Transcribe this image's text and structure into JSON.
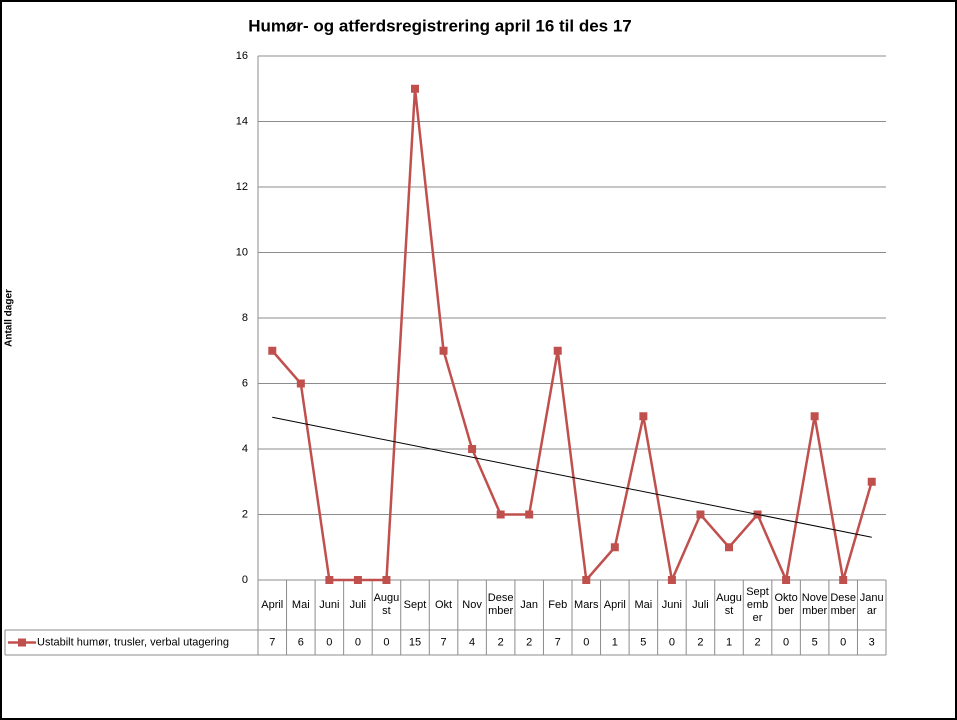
{
  "chart_data": {
    "type": "line",
    "title": "Humør- og atferdsregistrering april 16 til des 17",
    "y_label": "Antall dager",
    "categories": [
      "April",
      "Mai",
      "Juni",
      "Juli",
      "August",
      "Sept",
      "Okt",
      "Nov",
      "Desember",
      "Jan",
      "Feb",
      "Mars",
      "April",
      "Mai",
      "Juni",
      "Juli",
      "August",
      "September",
      "Oktober",
      "November",
      "Desember",
      "Januar"
    ],
    "series": [
      {
        "name": "Ustabilt humør, trusler, verbal utagering",
        "color": "#c0504d",
        "values": [
          7,
          6,
          0,
          0,
          0,
          15,
          7,
          4,
          2,
          2,
          7,
          0,
          1,
          5,
          0,
          2,
          1,
          2,
          0,
          5,
          0,
          3
        ]
      }
    ],
    "ylim": [
      0,
      16
    ],
    "yticks": [
      0,
      2,
      4,
      6,
      8,
      10,
      12,
      14,
      16
    ],
    "grid": true,
    "trendline": "linear",
    "data_table": true
  }
}
